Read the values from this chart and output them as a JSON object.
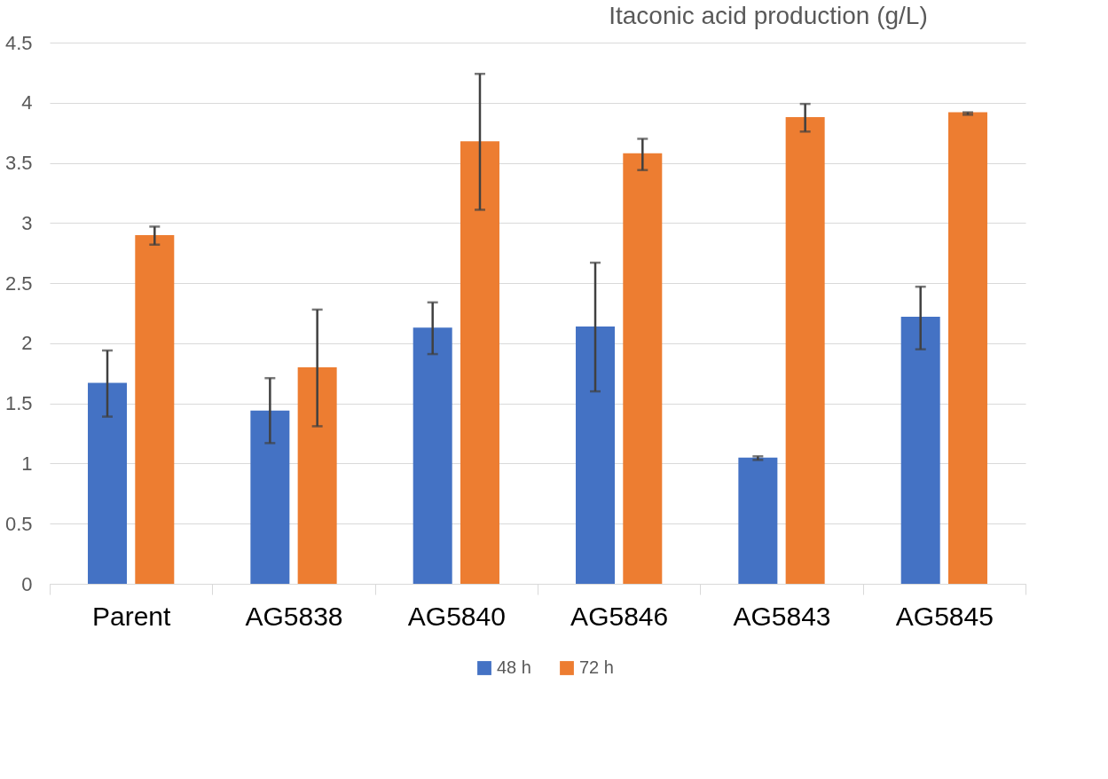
{
  "chart_data": {
    "type": "bar",
    "title": "Itaconic acid production (g/L)",
    "categories": [
      "Parent",
      "AG5838",
      "AG5840",
      "AG5846",
      "AG5843",
      "AG5845"
    ],
    "series": [
      {
        "name": "48 h",
        "color": "#4472c4",
        "values": [
          1.67,
          1.44,
          2.13,
          2.14,
          1.05,
          2.22
        ],
        "errors": [
          [
            1.39,
            1.94
          ],
          [
            1.17,
            1.71
          ],
          [
            1.91,
            2.34
          ],
          [
            1.6,
            2.67
          ],
          [
            1.03,
            1.06
          ],
          [
            1.95,
            2.47
          ]
        ]
      },
      {
        "name": "72 h",
        "color": "#ed7d31",
        "values": [
          2.9,
          1.8,
          3.68,
          3.58,
          3.88,
          3.92
        ],
        "errors": [
          [
            2.82,
            2.97
          ],
          [
            1.31,
            2.28
          ],
          [
            3.11,
            4.24
          ],
          [
            3.44,
            3.7
          ],
          [
            3.76,
            3.99
          ],
          [
            3.9,
            3.92
          ]
        ]
      }
    ],
    "ylim": [
      0,
      4.5
    ],
    "yticks": [
      0,
      0.5,
      1,
      1.5,
      2,
      2.5,
      3,
      3.5,
      4,
      4.5
    ],
    "grid": "y",
    "legend": "bottom"
  }
}
